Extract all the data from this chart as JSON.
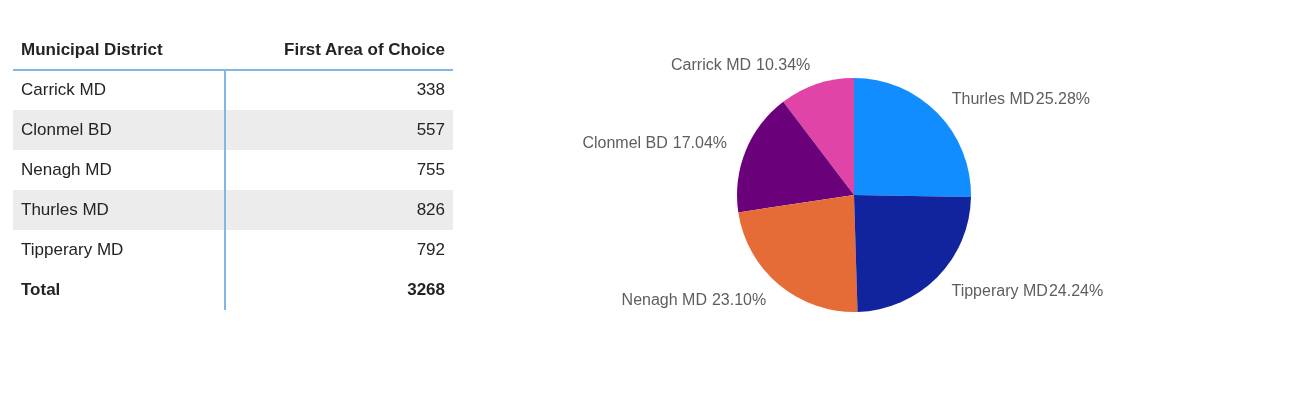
{
  "chart_data": [
    {
      "type": "other",
      "categories": [
        "Carrick MD",
        "Clonmel BD",
        "Nenagh MD",
        "Thurles MD",
        "Tipperary MD"
      ],
      "values": [
        338,
        557,
        755,
        826,
        792
      ],
      "data_labels": true,
      "annotations": [
        "Municipal District",
        "First Area of Choice",
        "Total",
        "3268"
      ]
    },
    {
      "type": "pie",
      "categories": [
        "Carrick MD",
        "Clonmel BD",
        "Nenagh MD",
        "Thurles MD",
        "Tipperary MD"
      ],
      "values": [
        10.34,
        17.04,
        23.1,
        25.28,
        24.24
      ],
      "colors": [
        "#e044a7",
        "#6b007b",
        "#e66c37",
        "#118dff",
        "#12239e"
      ],
      "value_labels": [
        "10.34%",
        "17.04%",
        "23.10%",
        "25.28%",
        "24.24%"
      ],
      "legend": false
    }
  ]
}
